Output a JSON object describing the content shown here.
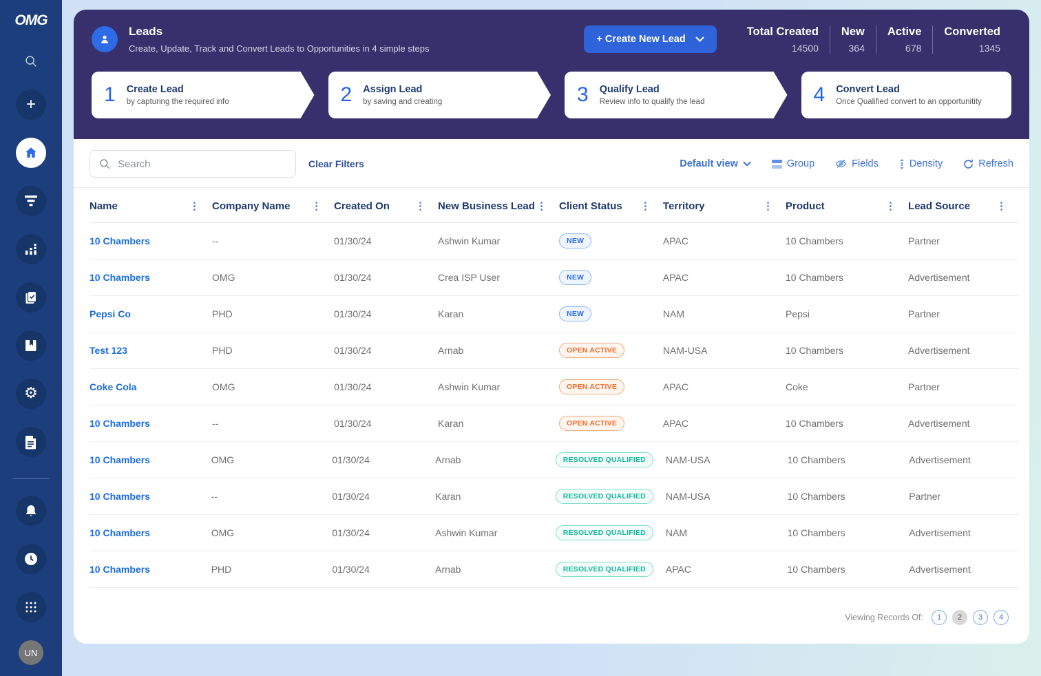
{
  "brand": {
    "logo_text": "OMG"
  },
  "sidebar": {
    "avatar_initials": "UN",
    "icon_names": [
      "search-icon",
      "plus-icon",
      "home-icon",
      "filter-icon",
      "bar-chart-icon",
      "tasks-icon",
      "book-icon",
      "gear-icon",
      "document-icon",
      "bell-icon",
      "clock-icon",
      "apps-grid-icon"
    ]
  },
  "header": {
    "title": "Leads",
    "subtitle": "Create, Update, Track and Convert Leads to Opportunities in 4 simple steps",
    "create_button_label": "+ Create New Lead",
    "stats": [
      {
        "label": "Total Created",
        "value": "14500"
      },
      {
        "label": "New",
        "value": "364"
      },
      {
        "label": "Active",
        "value": "678"
      },
      {
        "label": "Converted",
        "value": "1345"
      }
    ]
  },
  "steps": [
    {
      "number": "1",
      "title": "Create Lead",
      "subtitle": "by capturing the required info"
    },
    {
      "number": "2",
      "title": "Assign Lead",
      "subtitle": "by saving and creating"
    },
    {
      "number": "3",
      "title": "Qualify Lead",
      "subtitle": "Review info to qualify the lead"
    },
    {
      "number": "4",
      "title": "Convert Lead",
      "subtitle": "Once Qualified convert to an opportunitity"
    }
  ],
  "toolbar": {
    "search_placeholder": "Search",
    "search_value": "",
    "clear_filters_label": "Clear Filters",
    "view_selector_label": "Default view",
    "group_label": "Group",
    "fields_label": "Fields",
    "density_label": "Density",
    "refresh_label": "Refresh"
  },
  "table": {
    "columns": [
      "Name",
      "Company Name",
      "Created On",
      "New Business Lead",
      "Client Status",
      "Territory",
      "Product",
      "Lead Source"
    ],
    "rows": [
      {
        "name": "10 Chambers",
        "company": "--",
        "created_on": "01/30/24",
        "new_business_lead": "Ashwin Kumar",
        "client_status": "NEW",
        "territory": "APAC",
        "product": "10 Chambers",
        "lead_source": "Partner"
      },
      {
        "name": "10 Chambers",
        "company": "OMG",
        "created_on": "01/30/24",
        "new_business_lead": "Crea ISP User",
        "client_status": "NEW",
        "territory": "APAC",
        "product": "10 Chambers",
        "lead_source": "Advertisement"
      },
      {
        "name": "Pepsi Co",
        "company": "PHD",
        "created_on": "01/30/24",
        "new_business_lead": "Karan",
        "client_status": "NEW",
        "territory": "NAM",
        "product": "Pepsi",
        "lead_source": "Partner"
      },
      {
        "name": "Test 123",
        "company": "PHD",
        "created_on": "01/30/24",
        "new_business_lead": "Arnab",
        "client_status": "OPEN ACTIVE",
        "territory": "NAM-USA",
        "product": "10 Chambers",
        "lead_source": "Advertisement"
      },
      {
        "name": "Coke Cola",
        "company": "OMG",
        "created_on": "01/30/24",
        "new_business_lead": "Ashwin Kumar",
        "client_status": "OPEN ACTIVE",
        "territory": "APAC",
        "product": "Coke",
        "lead_source": "Partner"
      },
      {
        "name": "10 Chambers",
        "company": "--",
        "created_on": "01/30/24",
        "new_business_lead": "Karan",
        "client_status": "OPEN ACTIVE",
        "territory": "APAC",
        "product": "10 Chambers",
        "lead_source": "Advertisement"
      },
      {
        "name": "10 Chambers",
        "company": "OMG",
        "created_on": "01/30/24",
        "new_business_lead": "Arnab",
        "client_status": "RESOLVED QUALIFIED",
        "territory": "NAM-USA",
        "product": "10 Chambers",
        "lead_source": "Advertisement"
      },
      {
        "name": "10 Chambers",
        "company": "--",
        "created_on": "01/30/24",
        "new_business_lead": "Karan",
        "client_status": "RESOLVED QUALIFIED",
        "territory": "NAM-USA",
        "product": "10 Chambers",
        "lead_source": "Partner"
      },
      {
        "name": "10 Chambers",
        "company": "OMG",
        "created_on": "01/30/24",
        "new_business_lead": "Ashwin Kumar",
        "client_status": "RESOLVED QUALIFIED",
        "territory": "NAM",
        "product": "10 Chambers",
        "lead_source": "Advertisement"
      },
      {
        "name": "10 Chambers",
        "company": "PHD",
        "created_on": "01/30/24",
        "new_business_lead": "Arnab",
        "client_status": "RESOLVED QUALIFIED",
        "territory": "APAC",
        "product": "10 Chambers",
        "lead_source": "Advertisement"
      }
    ]
  },
  "pagination": {
    "label": "Viewing Records Of:",
    "pages": [
      "1",
      "2",
      "3",
      "4"
    ],
    "current_page": "2"
  },
  "colors": {
    "sidebar_navy": "#1d3e7c",
    "hero_purple": "#37306d",
    "accent_blue": "#2e63d9",
    "status_new": "#2e6be6",
    "status_open_active": "#ed6a2a",
    "status_resolved_qualified": "#14b89b"
  }
}
